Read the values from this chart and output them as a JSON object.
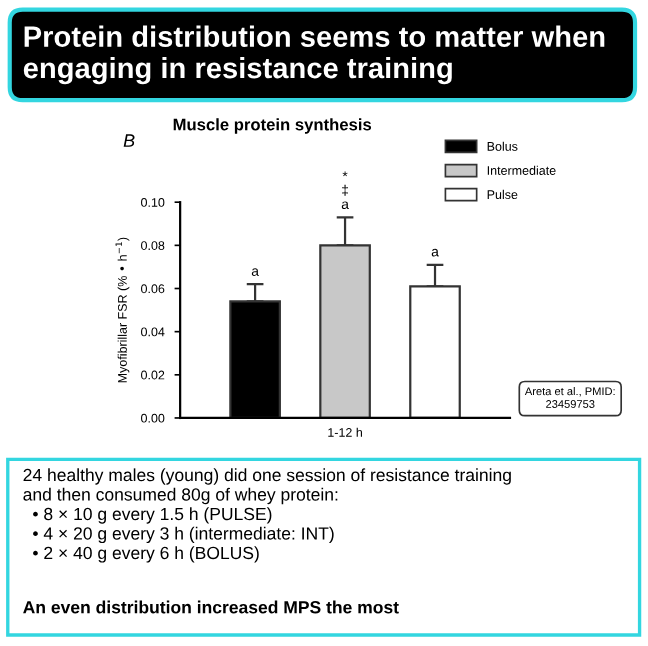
{
  "chart_data": {
    "type": "bar",
    "title": "Protein distribution seems to matter when engaging in resistance training",
    "subtitle": "Muscle protein synthesis",
    "ylabel": "Myofibrillar FSR (% • h$^{−1}$)",
    "categories": [
      "1-12 h"
    ],
    "series": [
      {
        "name": "Bolus",
        "color": "#000000",
        "values": [
          0.054
        ],
        "errors": [
          0.008
        ],
        "value_labels": [
          "a"
        ]
      },
      {
        "name": "Intermediate",
        "color": "#c8c8c8",
        "values": [
          0.08
        ],
        "errors": [
          0.013
        ],
        "value_labels": [
          "*\n‡\na"
        ]
      },
      {
        "name": "Pulse",
        "color": "#ffffff",
        "values": [
          0.061
        ],
        "errors": [
          0.01
        ],
        "value_labels": [
          "a"
        ]
      }
    ],
    "ylim": [
      0,
      0.1
    ],
    "yticks": [
      {
        "value": 0,
        "label": "0.00"
      },
      {
        "value": 0.02,
        "label": "0.02"
      },
      {
        "value": 0.04,
        "label": "0.04"
      },
      {
        "value": 0.06,
        "label": "0.06"
      },
      {
        "value": 0.08,
        "label": "0.08"
      },
      {
        "value": 0.1,
        "label": "0.10"
      }
    ],
    "grid": false,
    "legend": "top right",
    "annotations": [
      "B",
      "Areta et al., PMID:\n23459753",
      "24 healthy males (young) did one session of resistance training\nand then consumed 80g of whey protein:\n  • 8 × 10 g every 1.5 h (PULSE)\n  • 4 × 20 g every 3 h (intermediate: INT)\n  • 2 × 40 g every 6 h (BOLUS)",
      "An even distribution increased MPS the most"
    ]
  }
}
